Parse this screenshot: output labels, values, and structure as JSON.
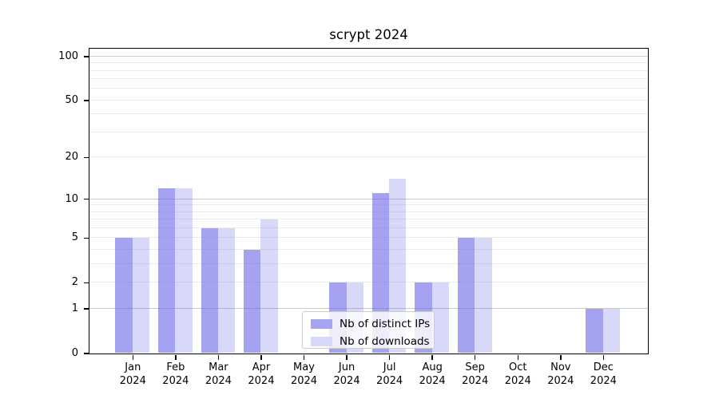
{
  "figure": {
    "title": "scrypt 2024"
  },
  "chart_data": {
    "type": "bar",
    "title": "scrypt 2024",
    "categories": [
      "Jan",
      "Feb",
      "Mar",
      "Apr",
      "May",
      "Jun",
      "Jul",
      "Aug",
      "Sep",
      "Oct",
      "Nov",
      "Dec"
    ],
    "year_label": "2024",
    "series": [
      {
        "name": "Nb of distinct IPs",
        "slug": "distinct-ips",
        "values": [
          5,
          12,
          6,
          4,
          0,
          2,
          11,
          2,
          5,
          0,
          0,
          1
        ],
        "bar_color": "rgba(101,101,232,0.6)",
        "legend_color": "#a4a4f0"
      },
      {
        "name": "Nb of downloads",
        "slug": "downloads",
        "values": [
          5,
          12,
          6,
          7,
          0,
          2,
          14,
          2,
          5,
          0,
          0,
          1
        ],
        "bar_color": "rgba(101,101,232,0.25)",
        "legend_color": "#d8d8f8"
      }
    ],
    "yscale": "log1p",
    "ylim": [
      0,
      113
    ],
    "yticks": [
      0,
      1,
      2,
      5,
      10,
      20,
      50,
      100
    ],
    "grid": {
      "major": [
        1,
        10,
        100
      ],
      "minor": [
        2,
        3,
        4,
        5,
        6,
        7,
        8,
        9,
        20,
        30,
        40,
        50,
        60,
        70,
        80,
        90
      ]
    },
    "legend": {
      "position": "lower-center",
      "items": [
        "Nb of distinct IPs",
        "Nb of downloads"
      ]
    }
  },
  "colors": {
    "background": "#ffffff",
    "spine": "#000000",
    "major_grid": "#c9c9c9",
    "minor_grid": "#ebebeb",
    "text": "#000000"
  }
}
